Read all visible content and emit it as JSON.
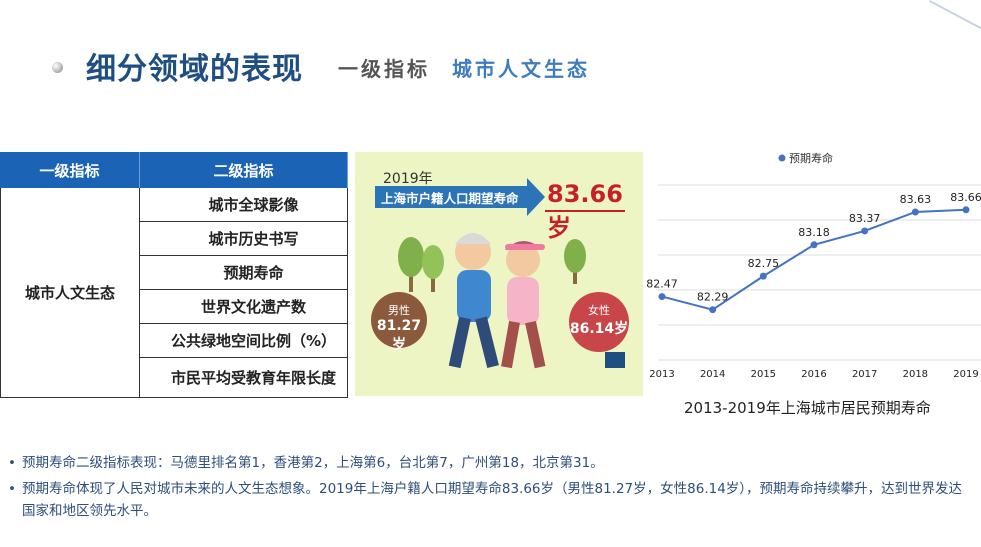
{
  "header": {
    "title": "细分领域的表现",
    "subtitle_prefix": "一级指标",
    "subtitle_value": "城市人文生态"
  },
  "table": {
    "col1_header": "一级指标",
    "col2_header": "二级指标",
    "category": "城市人文生态",
    "items": [
      "城市全球影像",
      "城市历史书写",
      "预期寿命",
      "世界文化遗产数",
      "公共绿地空间比例（%）",
      "市民平均受教育年限长度"
    ]
  },
  "infographic": {
    "year": "2019年",
    "banner": "上海市户籍人口期望寿命",
    "big_value": "83.66岁",
    "male_label": "男性",
    "male_value": "81.27岁",
    "female_label": "女性",
    "female_value": "86.14岁",
    "colors": {
      "banner": "#2c74b8",
      "accent": "#c8202a",
      "background": "#eef5c4"
    }
  },
  "chart_data": {
    "type": "line",
    "title": "2013-2019年上海城市居民预期寿命",
    "legend": "top-center",
    "categories": [
      "2013",
      "2014",
      "2015",
      "2016",
      "2017",
      "2018",
      "2019"
    ],
    "series": [
      {
        "name": "预期寿命",
        "values": [
          82.47,
          82.29,
          82.75,
          83.18,
          83.37,
          83.63,
          83.66
        ],
        "color": "#4472c4"
      }
    ],
    "ylim": [
      81.6,
      84.0
    ],
    "grid": true
  },
  "notes": [
    "预期寿命二级指标表现：马德里排名第1，香港第2，上海第6，台北第7，广州第18，北京第31。",
    "预期寿命体现了人民对城市未来的人文生态想象。2019年上海户籍人口期望寿命83.66岁（男性81.27岁，女性86.14岁），预期寿命持续攀升，达到世界发达国家和地区领先水平。"
  ]
}
